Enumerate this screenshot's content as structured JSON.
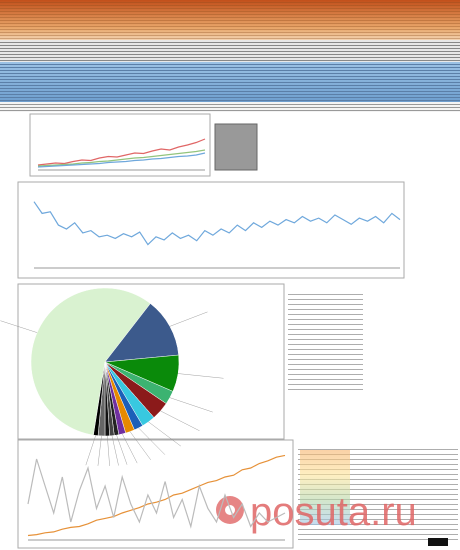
{
  "watermark": "posuta.ru",
  "chart_data": [
    {
      "type": "line",
      "ylim": [
        0,
        100
      ],
      "series": [
        {
          "color": "#e06666",
          "values": [
            10,
            12,
            14,
            13,
            17,
            20,
            19,
            24,
            27,
            26,
            30,
            34,
            33,
            38,
            42,
            40,
            46,
            50,
            55,
            62
          ]
        },
        {
          "color": "#93c47d",
          "values": [
            8,
            9,
            10,
            11,
            12,
            14,
            15,
            17,
            18,
            20,
            22,
            24,
            25,
            27,
            29,
            31,
            33,
            35,
            37,
            40
          ]
        },
        {
          "color": "#6fa8dc",
          "values": [
            6,
            7,
            8,
            9,
            10,
            11,
            12,
            13,
            15,
            16,
            17,
            19,
            20,
            22,
            23,
            25,
            27,
            28,
            30,
            34
          ]
        }
      ]
    },
    {
      "type": "line",
      "ylim": [
        0,
        100
      ],
      "series": [
        {
          "color": "#6fa8dc",
          "values": [
            85,
            70,
            72,
            55,
            50,
            58,
            45,
            48,
            40,
            42,
            38,
            44,
            40,
            46,
            30,
            40,
            36,
            45,
            38,
            42,
            35,
            48,
            42,
            50,
            45,
            55,
            48,
            58,
            52,
            60,
            55,
            62,
            58,
            66,
            60,
            64,
            58,
            68,
            62,
            56,
            64,
            60,
            66,
            58,
            70,
            62
          ]
        }
      ]
    },
    {
      "type": "pie",
      "values": [
        58,
        13,
        8,
        3,
        4,
        3,
        2,
        2,
        1.5,
        1,
        1,
        1,
        1.5,
        1
      ],
      "colors": [
        "#d9f2d0",
        "#3c5a8c",
        "#0a8a0a",
        "#3cb371",
        "#8b1a1a",
        "#38c8e0",
        "#1c5fb8",
        "#e68a00",
        "#7030a0",
        "#222",
        "#444",
        "#111",
        "#666",
        "#000"
      ]
    },
    {
      "type": "line",
      "ylim": [
        0,
        100
      ],
      "series": [
        {
          "color": "#e69138",
          "values": [
            5,
            6,
            8,
            9,
            12,
            14,
            15,
            18,
            22,
            24,
            26,
            30,
            33,
            36,
            40,
            42,
            45,
            50,
            52,
            56,
            60,
            64,
            66,
            70,
            72,
            78,
            80,
            85,
            88,
            92,
            94
          ]
        },
        {
          "color": "#bbbbbb",
          "values": [
            40,
            90,
            60,
            30,
            70,
            20,
            55,
            80,
            35,
            60,
            25,
            70,
            40,
            20,
            50,
            30,
            65,
            25,
            45,
            15,
            60,
            35,
            20,
            50,
            25,
            40,
            15,
            30,
            20,
            25,
            30
          ]
        }
      ]
    }
  ]
}
